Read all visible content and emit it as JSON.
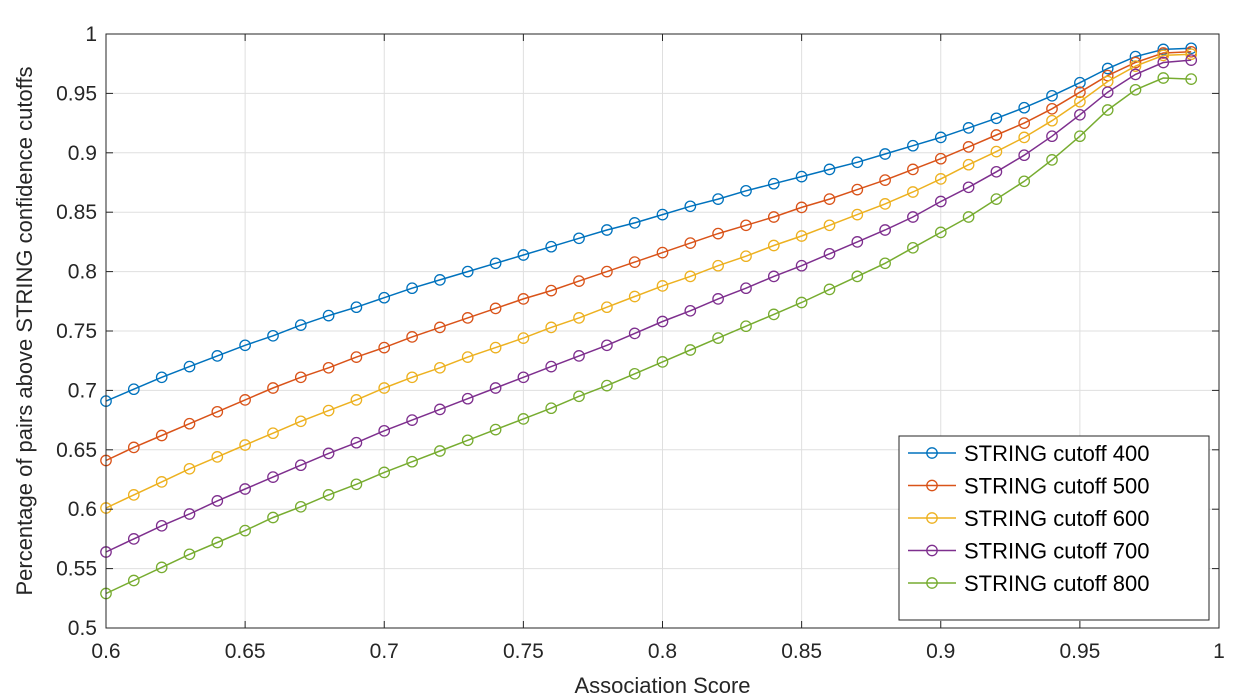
{
  "chart_data": {
    "type": "line",
    "xlabel": "Association Score",
    "ylabel": "Percentage of pairs above STRING confidence cutoffs",
    "xlim": [
      0.6,
      1
    ],
    "ylim": [
      0.5,
      1
    ],
    "xticks": [
      0.6,
      0.65,
      0.7,
      0.75,
      0.8,
      0.85,
      0.9,
      0.95,
      1
    ],
    "xtick_labels": [
      "0.6",
      "0.65",
      "0.7",
      "0.75",
      "0.8",
      "0.85",
      "0.9",
      "0.95",
      "1"
    ],
    "yticks": [
      0.5,
      0.55,
      0.6,
      0.65,
      0.7,
      0.75,
      0.8,
      0.85,
      0.9,
      0.95,
      1
    ],
    "ytick_labels": [
      "0.5",
      "0.55",
      "0.6",
      "0.65",
      "0.7",
      "0.75",
      "0.8",
      "0.85",
      "0.9",
      "0.95",
      "1"
    ],
    "grid": true,
    "marker": "circle",
    "legend_position": "bottom-right",
    "x": [
      0.6,
      0.61,
      0.62,
      0.63,
      0.64,
      0.65,
      0.66,
      0.67,
      0.68,
      0.69,
      0.7,
      0.71,
      0.72,
      0.73,
      0.74,
      0.75,
      0.76,
      0.77,
      0.78,
      0.79,
      0.8,
      0.81,
      0.82,
      0.83,
      0.84,
      0.85,
      0.86,
      0.87,
      0.88,
      0.89,
      0.9,
      0.91,
      0.92,
      0.93,
      0.94,
      0.95,
      0.96,
      0.97,
      0.98,
      0.99
    ],
    "series": [
      {
        "name": "STRING cutoff 400",
        "color": "#0072BD",
        "values": [
          0.691,
          0.701,
          0.711,
          0.72,
          0.729,
          0.738,
          0.746,
          0.755,
          0.763,
          0.77,
          0.778,
          0.786,
          0.793,
          0.8,
          0.807,
          0.814,
          0.821,
          0.828,
          0.835,
          0.841,
          0.848,
          0.855,
          0.861,
          0.868,
          0.874,
          0.88,
          0.886,
          0.892,
          0.899,
          0.906,
          0.913,
          0.921,
          0.929,
          0.938,
          0.948,
          0.959,
          0.971,
          0.981,
          0.987,
          0.988
        ]
      },
      {
        "name": "STRING cutoff 500",
        "color": "#D95319",
        "values": [
          0.641,
          0.652,
          0.662,
          0.672,
          0.682,
          0.692,
          0.702,
          0.711,
          0.719,
          0.728,
          0.736,
          0.745,
          0.753,
          0.761,
          0.769,
          0.777,
          0.784,
          0.792,
          0.8,
          0.808,
          0.816,
          0.824,
          0.832,
          0.839,
          0.846,
          0.854,
          0.861,
          0.869,
          0.877,
          0.886,
          0.895,
          0.905,
          0.915,
          0.925,
          0.937,
          0.951,
          0.965,
          0.976,
          0.984,
          0.985
        ]
      },
      {
        "name": "STRING cutoff 600",
        "color": "#EDB120",
        "values": [
          0.601,
          0.612,
          0.623,
          0.634,
          0.644,
          0.654,
          0.664,
          0.674,
          0.683,
          0.692,
          0.702,
          0.711,
          0.719,
          0.728,
          0.736,
          0.744,
          0.753,
          0.761,
          0.77,
          0.779,
          0.788,
          0.796,
          0.805,
          0.813,
          0.822,
          0.83,
          0.839,
          0.848,
          0.857,
          0.867,
          0.878,
          0.89,
          0.901,
          0.913,
          0.927,
          0.943,
          0.96,
          0.973,
          0.982,
          0.983
        ]
      },
      {
        "name": "STRING cutoff 700",
        "color": "#7E2F8E",
        "values": [
          0.564,
          0.575,
          0.586,
          0.596,
          0.607,
          0.617,
          0.627,
          0.637,
          0.647,
          0.656,
          0.666,
          0.675,
          0.684,
          0.693,
          0.702,
          0.711,
          0.72,
          0.729,
          0.738,
          0.748,
          0.758,
          0.767,
          0.777,
          0.786,
          0.796,
          0.805,
          0.815,
          0.825,
          0.835,
          0.846,
          0.859,
          0.871,
          0.884,
          0.898,
          0.914,
          0.932,
          0.951,
          0.966,
          0.976,
          0.978
        ]
      },
      {
        "name": "STRING cutoff 800",
        "color": "#77AC30",
        "values": [
          0.529,
          0.54,
          0.551,
          0.562,
          0.572,
          0.582,
          0.593,
          0.602,
          0.612,
          0.621,
          0.631,
          0.64,
          0.649,
          0.658,
          0.667,
          0.676,
          0.685,
          0.695,
          0.704,
          0.714,
          0.724,
          0.734,
          0.744,
          0.754,
          0.764,
          0.774,
          0.785,
          0.796,
          0.807,
          0.82,
          0.833,
          0.846,
          0.861,
          0.876,
          0.894,
          0.914,
          0.936,
          0.953,
          0.963,
          0.962
        ]
      }
    ]
  }
}
